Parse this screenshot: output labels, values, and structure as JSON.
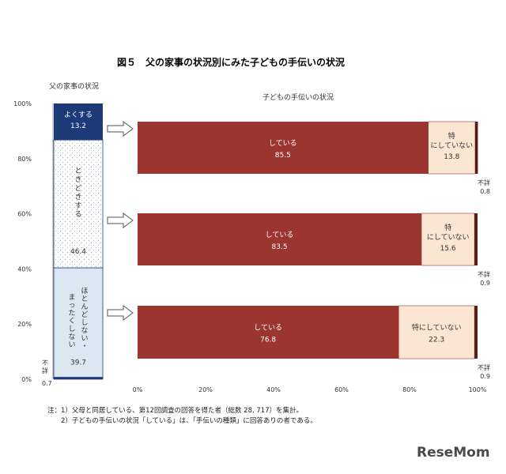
{
  "chart_data": {
    "type": "bar",
    "title": "図５　父の家事の状況別にみた子どもの手伝いの状況",
    "left_axis_title": "父の家事の状況",
    "right_axis_title": "子どもの手伝いの状況",
    "y_ticks": [
      "100%",
      "80%",
      "60%",
      "40%",
      "20%",
      "0%"
    ],
    "x_ticks": [
      "0%",
      "20%",
      "40%",
      "60%",
      "80%",
      "100%"
    ],
    "father_segments": [
      {
        "label": "不詳",
        "value": 0.7
      },
      {
        "label": "ほとんどしない・まったくしない",
        "value": 39.7
      },
      {
        "label": "ときどきする",
        "value": 46.4
      },
      {
        "label": "よくする",
        "value": 13.2
      }
    ],
    "child_rows": [
      {
        "father_status": "よくする",
        "segments": [
          {
            "label": "している",
            "value": 85.5
          },
          {
            "label": "特にしていない",
            "value": 13.8
          },
          {
            "label": "不詳",
            "value": 0.8
          }
        ]
      },
      {
        "father_status": "ときどきする",
        "segments": [
          {
            "label": "している",
            "value": 83.5
          },
          {
            "label": "特にしていない",
            "value": 15.6
          },
          {
            "label": "不詳",
            "value": 0.9
          }
        ]
      },
      {
        "father_status": "ほとんどしない・まったくしない",
        "segments": [
          {
            "label": "している",
            "value": 76.8
          },
          {
            "label": "特にしていない",
            "value": 22.3
          },
          {
            "label": "不詳",
            "value": 0.9
          }
        ]
      }
    ],
    "colors": {
      "father_often": "#1c3a78",
      "father_sometimes": "#ffffff",
      "father_rarely": "#dbe7f3",
      "father_unknown": "#1c3a78",
      "child_doing": "#9b3530",
      "child_not": "#fbe6d4",
      "child_unknown": "#5a1a16"
    }
  },
  "notes": [
    "注：1）父母と同居している、第12回調査の回答を得た者（総数 28, 717）を集計。",
    "　　2）子どもの手伝いの状況「している」は、「手伝いの種類」に回答ありの者である。"
  ],
  "brand": "ReseMom"
}
